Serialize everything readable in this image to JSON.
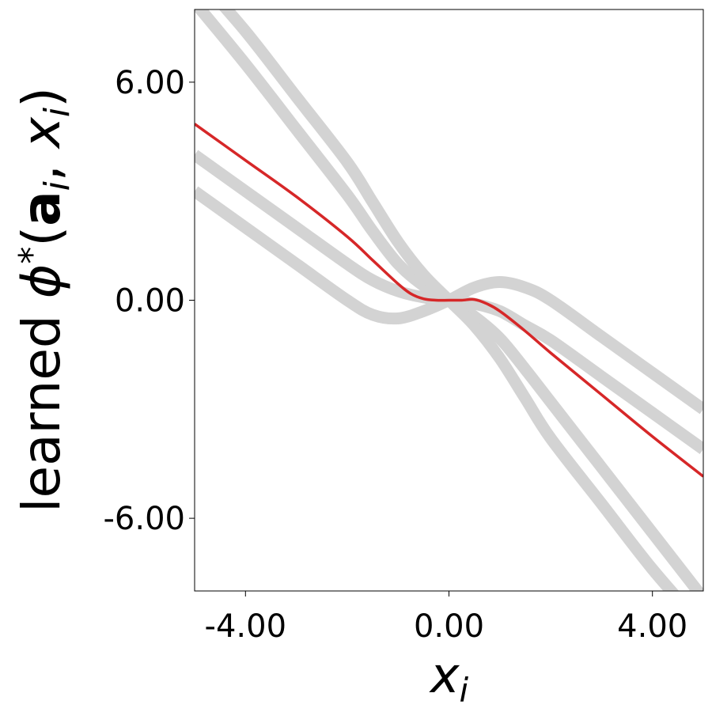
{
  "chart_data": {
    "type": "line",
    "xlabel": "x",
    "xlabel_sub": "i",
    "ylabel_prefix": "learned ",
    "ylabel_phi": "ϕ",
    "ylabel_star": "*",
    "ylabel_open": "(",
    "ylabel_a": "a",
    "ylabel_a_sub": "i",
    "ylabel_comma": ", ",
    "ylabel_x": "x",
    "ylabel_x_sub": "i",
    "ylabel_close": ")",
    "xlim": [
      -5,
      5
    ],
    "ylim": [
      -8,
      8
    ],
    "xticks": [
      -4,
      0,
      4
    ],
    "xtick_labels": [
      "-4.00",
      "0.00",
      "4.00"
    ],
    "yticks": [
      -6,
      0,
      6
    ],
    "ytick_labels": [
      "-6.00",
      "0.00",
      "6.00"
    ],
    "grid": false,
    "colors": {
      "learned": "#d62728",
      "reference": "#d3d3d3"
    },
    "series": [
      {
        "role": "reference",
        "x": [
          -5,
          -4,
          -3,
          -2,
          -1.5,
          -1,
          -0.5,
          0,
          0.5,
          1,
          1.5,
          2,
          3,
          4,
          5
        ],
        "y": [
          3.0,
          2.0,
          1.0,
          0.0,
          -0.4,
          -0.5,
          -0.3,
          0.0,
          0.35,
          0.5,
          0.35,
          0.0,
          -1.0,
          -2.0,
          -3.0
        ]
      },
      {
        "role": "reference",
        "x": [
          -5,
          -4,
          -3,
          -2,
          -1.5,
          -1,
          -0.5,
          0,
          0.5,
          1,
          1.5,
          2,
          3,
          4,
          5
        ],
        "y": [
          4.0,
          3.0,
          2.0,
          1.0,
          0.55,
          0.25,
          0.08,
          0.0,
          -0.1,
          -0.3,
          -0.7,
          -1.1,
          -2.1,
          -3.1,
          -4.1
        ]
      },
      {
        "role": "reference",
        "x": [
          -5,
          -4,
          -3,
          -2,
          -1.5,
          -1,
          -0.5,
          0,
          0.5,
          1,
          1.5,
          2,
          3,
          4,
          5
        ],
        "y": [
          8.2,
          6.5,
          4.7,
          2.9,
          1.9,
          1.0,
          0.4,
          0.0,
          -0.45,
          -1.05,
          -1.9,
          -2.8,
          -4.6,
          -6.4,
          -8.2
        ]
      },
      {
        "role": "reference",
        "x": [
          -5,
          -4,
          -3,
          -2,
          -1.5,
          -1,
          -0.5,
          0,
          0.5,
          1,
          1.5,
          2,
          3,
          4,
          5
        ],
        "y": [
          9.0,
          7.4,
          5.6,
          3.8,
          2.7,
          1.6,
          0.7,
          0.0,
          -0.7,
          -1.6,
          -2.7,
          -3.8,
          -5.6,
          -7.4,
          -9.0
        ]
      },
      {
        "role": "learned",
        "x": [
          -5,
          -4,
          -3,
          -2,
          -1.5,
          -1,
          -0.75,
          -0.5,
          -0.25,
          0,
          0.25,
          0.5,
          0.75,
          1,
          1.5,
          2,
          3,
          4,
          5
        ],
        "y": [
          4.85,
          3.85,
          2.85,
          1.75,
          1.1,
          0.45,
          0.18,
          0.04,
          0.0,
          0.0,
          0.0,
          0.02,
          -0.1,
          -0.3,
          -0.85,
          -1.45,
          -2.6,
          -3.75,
          -4.85
        ]
      }
    ]
  }
}
